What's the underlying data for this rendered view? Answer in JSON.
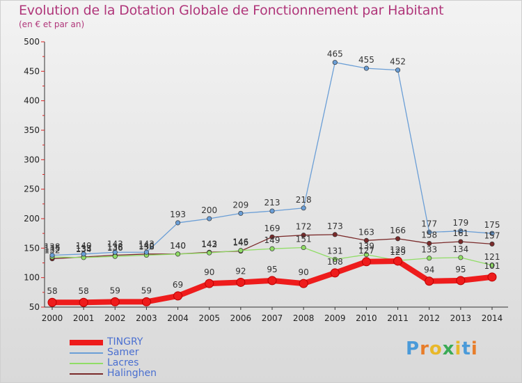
{
  "title": "Evolution de la Dotation Globale de Fonctionnement par Habitant",
  "subtitle": "(en € et par an)",
  "logo": {
    "text": "Proxiti",
    "letters": [
      {
        "ch": "P",
        "color": "#4a9ad9"
      },
      {
        "ch": "r",
        "color": "#e87d2a"
      },
      {
        "ch": "o",
        "color": "#e8b82a"
      },
      {
        "ch": "x",
        "color": "#3aaa55"
      },
      {
        "ch": "i",
        "color": "#e8b82a"
      },
      {
        "ch": "t",
        "color": "#4a9ad9"
      },
      {
        "ch": "i",
        "color": "#e87d2a"
      }
    ]
  },
  "chart_data": {
    "type": "line",
    "title": "Evolution de la Dotation Globale de Fonctionnement par Habitant",
    "subtitle": "(en € et par an)",
    "xlabel": "",
    "ylabel": "",
    "x": [
      2000,
      2001,
      2002,
      2003,
      2004,
      2005,
      2006,
      2007,
      2008,
      2009,
      2010,
      2011,
      2012,
      2013,
      2014
    ],
    "ylim": [
      50,
      500
    ],
    "yticks": [
      50,
      100,
      150,
      200,
      250,
      300,
      350,
      400,
      450,
      500
    ],
    "grid": false,
    "legend_position": "bottom-left",
    "series": [
      {
        "name": "TINGRY",
        "color": "#ee1c1c",
        "values": [
          58,
          58,
          59,
          59,
          69,
          90,
          92,
          95,
          90,
          108,
          127,
          128,
          94,
          95,
          101
        ]
      },
      {
        "name": "Samer",
        "color": "#6a9ed6",
        "values": [
          138,
          140,
          143,
          143,
          193,
          200,
          209,
          213,
          218,
          465,
          455,
          452,
          177,
          179,
          175
        ]
      },
      {
        "name": "Lacres",
        "color": "#90dd66",
        "values": [
          135,
          134,
          136,
          138,
          140,
          142,
          146,
          149,
          151,
          131,
          139,
          129,
          133,
          134,
          121
        ]
      },
      {
        "name": "Halinghen",
        "color": "#7a2a2a",
        "values": [
          132,
          135,
          138,
          140,
          140,
          143,
          145,
          169,
          172,
          173,
          163,
          166,
          158,
          161,
          157
        ]
      }
    ]
  }
}
